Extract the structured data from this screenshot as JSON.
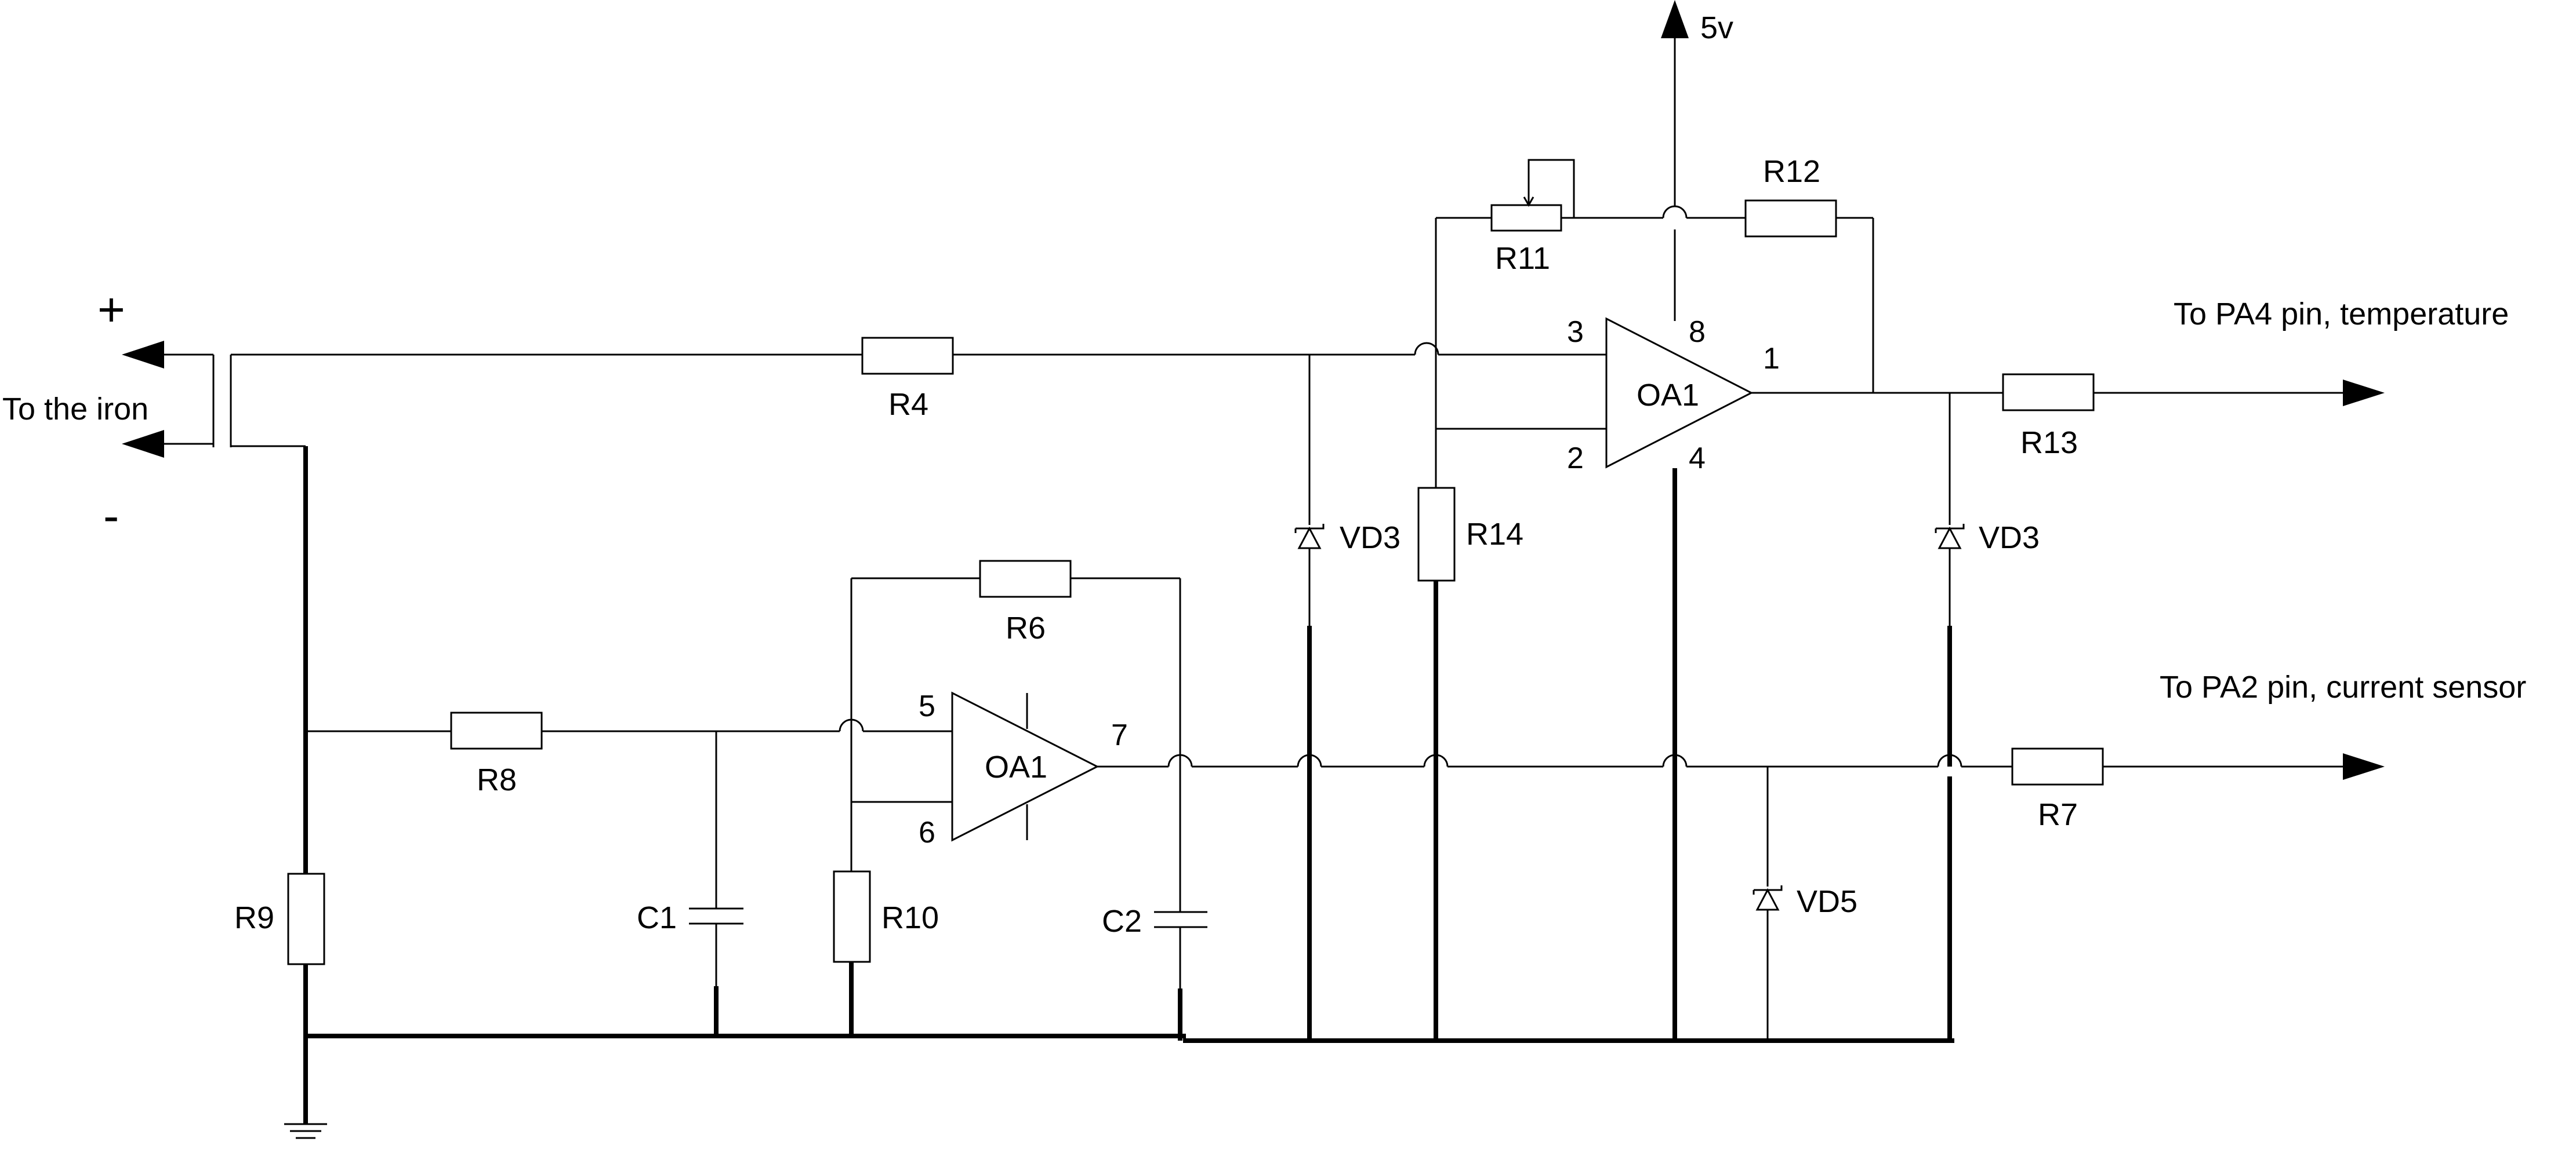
{
  "texts": {
    "iron": "To  the iron",
    "plus": "+",
    "minus": "-",
    "supply": "5v",
    "out_temp": "To PA4 pin, temperature",
    "out_current": "To PA2 pin, current sensor"
  },
  "components": {
    "r4": "R4",
    "r6": "R6",
    "r7": "R7",
    "r8": "R8",
    "r9": "R9",
    "r10": "R10",
    "r11": "R11",
    "r12": "R12",
    "r13": "R13",
    "r14": "R14",
    "c1": "C1",
    "c2": "C2",
    "vd3a": "VD3",
    "vd3b": "VD3",
    "vd5": "VD5",
    "oa_top": "OA1",
    "oa_bottom": "OA1"
  },
  "pins": {
    "p1": "1",
    "p2": "2",
    "p3": "3",
    "p4": "4",
    "p5": "5",
    "p6": "6",
    "p7": "7",
    "p8": "8"
  }
}
